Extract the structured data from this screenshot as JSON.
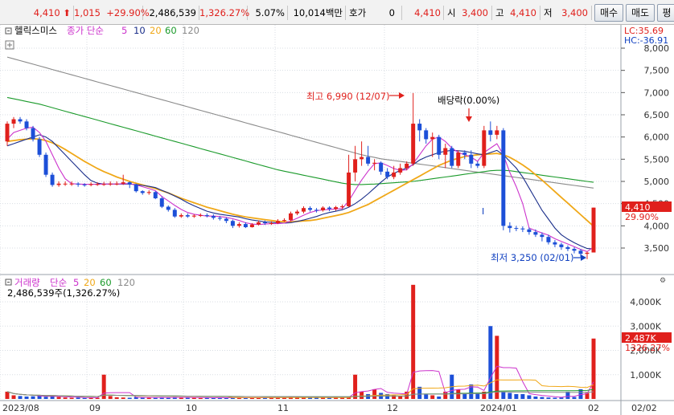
{
  "quote": {
    "price": "4,410",
    "change": "1,015",
    "change_pct": "+29.90%",
    "volume": "2,486,539",
    "volume_pct": "1,326.27%",
    "turnover": "5.07%",
    "amount": "10,014백만",
    "hoga_label": "호가",
    "hoga_value": "0",
    "current": "4,410",
    "open_label": "시",
    "open": "3,400",
    "high_label": "고",
    "high": "4,410",
    "low_label": "저",
    "low": "3,400"
  },
  "buttons": {
    "buy": "매수",
    "sell": "매도",
    "extra": "평"
  },
  "price_legend": {
    "name": "헬릭스미스",
    "type": "종가 단순",
    "ma": [
      "5",
      "10",
      "20",
      "60",
      "120"
    ]
  },
  "volume_legend": {
    "name": "거래량",
    "type": "단순",
    "ma": [
      "5",
      "20",
      "60",
      "120"
    ],
    "current": "2,486,539주(1,326.27%)"
  },
  "y_axis_price": [
    "8,000",
    "7,500",
    "7,000",
    "6,500",
    "6,000",
    "5,500",
    "5,000",
    "4,500",
    "4,000",
    "3,500"
  ],
  "y_axis_volume": [
    "4,000K",
    "3,000K",
    "2,000K",
    "1,000K"
  ],
  "lc_label": "LC:35.69",
  "hc_label": "HC:-36.91",
  "last_price_tag": "4,410",
  "last_change_tag": "29.90%",
  "last_volume_tag": "2,487K",
  "last_volume_pct_tag": "1326.27%",
  "annotations": {
    "high": "최고 6,990 (12/07)",
    "dividend": "배당락(0.00%)",
    "low": "최저 3,250 (02/01)",
    "marker": "I"
  },
  "x_axis": [
    "2023/08",
    "09",
    "10",
    "11",
    "12",
    "2024/01",
    "02",
    "02/02"
  ],
  "colors": {
    "up": "#e0201c",
    "down": "#1c4fd8",
    "ma5": "#cc33cc",
    "ma10": "#1a2e8a",
    "ma20": "#f0a818",
    "ma60": "#1a9a2a",
    "ma120": "#8a8a8a"
  },
  "chart_data": {
    "type": "candlestick",
    "price": {
      "open": [
        5900,
        6300,
        6400,
        6350,
        6200,
        5950,
        5600,
        5150,
        4920,
        4950,
        4950,
        4950,
        4930,
        4920,
        4940,
        4940,
        4940,
        4950,
        4950,
        4980,
        4930,
        4780,
        4740,
        4760,
        4620,
        4430,
        4360,
        4210,
        4240,
        4210,
        4230,
        4240,
        4220,
        4180,
        4160,
        4110,
        4000,
        4040,
        3970,
        4030,
        4080,
        4060,
        4060,
        4110,
        4130,
        4280,
        4320,
        4400,
        4360,
        4350,
        4410,
        4380,
        4420,
        4440,
        5200,
        5500,
        5550,
        5400,
        5420,
        5220,
        5100,
        5200,
        5300,
        5400,
        6300,
        6150,
        5950,
        6000,
        5600,
        5750,
        5350,
        5650,
        5600,
        5400,
        5350,
        6150,
        6050,
        6150,
        4000,
        3950,
        3940,
        3920,
        3860,
        3800,
        3750,
        3630,
        3580,
        3520,
        3480,
        3440,
        3370,
        3400
      ],
      "close": [
        6300,
        6400,
        6350,
        6200,
        5950,
        5600,
        5150,
        4920,
        4950,
        4950,
        4950,
        4930,
        4920,
        4940,
        4940,
        4940,
        4950,
        4950,
        4980,
        4930,
        4780,
        4740,
        4760,
        4620,
        4430,
        4360,
        4210,
        4240,
        4210,
        4230,
        4240,
        4220,
        4180,
        4160,
        4110,
        4000,
        4040,
        3970,
        4030,
        4080,
        4060,
        4060,
        4110,
        4130,
        4280,
        4320,
        4400,
        4360,
        4350,
        4410,
        4380,
        4420,
        4440,
        5200,
        5500,
        5550,
        5400,
        5420,
        5220,
        5100,
        5200,
        5300,
        5400,
        6300,
        6150,
        5950,
        6000,
        5600,
        5750,
        5350,
        5650,
        5600,
        5400,
        5350,
        6150,
        6050,
        6150,
        4000,
        3950,
        3940,
        3920,
        3860,
        3800,
        3750,
        3630,
        3580,
        3520,
        3480,
        3440,
        3370,
        3395,
        4410
      ],
      "high": [
        6350,
        6450,
        6450,
        6400,
        6250,
        6000,
        5650,
        5200,
        5000,
        5000,
        5000,
        4980,
        4960,
        4980,
        4980,
        4990,
        5000,
        5000,
        5150,
        5000,
        4950,
        4800,
        4800,
        4780,
        4660,
        4460,
        4400,
        4280,
        4280,
        4260,
        4280,
        4280,
        4260,
        4220,
        4190,
        4140,
        4080,
        4080,
        4060,
        4120,
        4120,
        4100,
        4150,
        4170,
        4320,
        4360,
        4440,
        4440,
        4400,
        4440,
        4440,
        4450,
        4480,
        5600,
        5800,
        5900,
        5800,
        5500,
        5450,
        5300,
        5350,
        5400,
        5450,
        6990,
        6400,
        6200,
        6100,
        6050,
        5850,
        5800,
        5700,
        5700,
        5700,
        5450,
        6250,
        6350,
        6250,
        6200,
        4080,
        4000,
        3990,
        3960,
        3920,
        3850,
        3800,
        3680,
        3620,
        3560,
        3520,
        3480,
        3420,
        4410
      ],
      "low": [
        5800,
        6200,
        6300,
        6150,
        5900,
        5550,
        5100,
        4880,
        4880,
        4900,
        4900,
        4880,
        4880,
        4890,
        4900,
        4900,
        4900,
        4910,
        4920,
        4850,
        4750,
        4700,
        4700,
        4600,
        4400,
        4320,
        4180,
        4180,
        4180,
        4180,
        4200,
        4190,
        4140,
        4120,
        4060,
        3950,
        3960,
        3950,
        3960,
        4010,
        4020,
        4020,
        4040,
        4090,
        4100,
        4240,
        4280,
        4320,
        4300,
        4320,
        4330,
        4340,
        4380,
        4420,
        5000,
        5350,
        5350,
        5250,
        5150,
        5050,
        5050,
        5150,
        5250,
        5350,
        5900,
        5850,
        5550,
        5500,
        5300,
        5300,
        5300,
        5500,
        5300,
        5300,
        5300,
        5900,
        5950,
        3900,
        3850,
        3880,
        3860,
        3800,
        3750,
        3650,
        3580,
        3520,
        3460,
        3430,
        3380,
        3300,
        3250,
        3400
      ]
    },
    "volume_k": [
      300,
      150,
      120,
      100,
      110,
      130,
      90,
      110,
      80,
      60,
      50,
      60,
      40,
      60,
      50,
      1000,
      120,
      70,
      60,
      50,
      80,
      60,
      60,
      50,
      70,
      60,
      80,
      60,
      50,
      50,
      40,
      60,
      50,
      60,
      40,
      50,
      60,
      40,
      50,
      50,
      60,
      70,
      50,
      60,
      80,
      90,
      60,
      60,
      70,
      50,
      60,
      80,
      60,
      70,
      1000,
      300,
      200,
      400,
      250,
      200,
      150,
      120,
      300,
      4700,
      500,
      200,
      150,
      100,
      300,
      1000,
      400,
      200,
      600,
      250,
      300,
      3000,
      2600,
      300,
      250,
      200,
      200,
      150,
      100,
      80,
      60,
      50,
      60,
      300,
      80,
      400,
      250,
      2487
    ],
    "ma_price": {
      "ma5": [
        5950,
        6100,
        6150,
        6200,
        6220,
        6100,
        5900,
        5600,
        5300,
        5060,
        4950,
        4940,
        4935,
        4935,
        4935,
        4940,
        4940,
        4940,
        4950,
        4950,
        4920,
        4880,
        4840,
        4790,
        4660,
        4560,
        4460,
        4370,
        4300,
        4260,
        4240,
        4220,
        4220,
        4210,
        4190,
        4160,
        4120,
        4070,
        4040,
        4030,
        4040,
        4050,
        4050,
        4060,
        4110,
        4170,
        4240,
        4300,
        4340,
        4360,
        4370,
        4380,
        4390,
        4560,
        4800,
        5030,
        5230,
        5400,
        5420,
        5360,
        5290,
        5250,
        5260,
        5400,
        5600,
        5800,
        5950,
        6000,
        5900,
        5750,
        5650,
        5600,
        5550,
        5450,
        5650,
        5750,
        5850,
        5600,
        5200,
        4880,
        4500,
        3950,
        3890,
        3840,
        3790,
        3710,
        3650,
        3590,
        3530,
        3470,
        3420,
        3520
      ],
      "ma10": [
        5800,
        5850,
        5900,
        5950,
        6000,
        6050,
        6000,
        5900,
        5750,
        5600,
        5450,
        5300,
        5150,
        5020,
        4960,
        4940,
        4940,
        4940,
        4940,
        4940,
        4930,
        4910,
        4890,
        4860,
        4800,
        4740,
        4670,
        4600,
        4520,
        4450,
        4390,
        4330,
        4290,
        4260,
        4240,
        4220,
        4200,
        4160,
        4130,
        4110,
        4090,
        4080,
        4070,
        4060,
        4070,
        4100,
        4130,
        4170,
        4210,
        4260,
        4300,
        4330,
        4360,
        4420,
        4500,
        4600,
        4720,
        4850,
        4980,
        5100,
        5180,
        5250,
        5300,
        5380,
        5480,
        5550,
        5600,
        5650,
        5680,
        5700,
        5690,
        5680,
        5650,
        5620,
        5600,
        5650,
        5700,
        5600,
        5450,
        5300,
        5100,
        4850,
        4600,
        4350,
        4150,
        3950,
        3800,
        3700,
        3620,
        3550,
        3490,
        3480
      ],
      "ma20": [
        5900,
        5920,
        5940,
        5950,
        5960,
        5950,
        5920,
        5870,
        5800,
        5720,
        5630,
        5540,
        5450,
        5370,
        5290,
        5220,
        5160,
        5100,
        5050,
        5000,
        4960,
        4920,
        4880,
        4840,
        4790,
        4740,
        4680,
        4620,
        4570,
        4520,
        4470,
        4420,
        4380,
        4340,
        4300,
        4260,
        4230,
        4200,
        4180,
        4160,
        4140,
        4120,
        4100,
        4090,
        4090,
        4100,
        4110,
        4120,
        4140,
        4170,
        4200,
        4230,
        4260,
        4300,
        4360,
        4420,
        4480,
        4560,
        4640,
        4720,
        4800,
        4880,
        4960,
        5040,
        5120,
        5200,
        5280,
        5360,
        5420,
        5480,
        5520,
        5560,
        5580,
        5600,
        5610,
        5620,
        5630,
        5600,
        5540,
        5460,
        5370,
        5270,
        5150,
        5030,
        4900,
        4770,
        4640,
        4510,
        4380,
        4250,
        4120,
        3990
      ],
      "ma60": [
        6890,
        6860,
        6830,
        6800,
        6770,
        6740,
        6700,
        6660,
        6620,
        6580,
        6540,
        6500,
        6460,
        6420,
        6380,
        6340,
        6300,
        6260,
        6220,
        6180,
        6140,
        6100,
        6060,
        6020,
        5980,
        5940,
        5900,
        5860,
        5820,
        5780,
        5740,
        5700,
        5660,
        5620,
        5580,
        5540,
        5500,
        5460,
        5420,
        5380,
        5340,
        5300,
        5260,
        5230,
        5200,
        5170,
        5140,
        5110,
        5080,
        5050,
        5020,
        4990,
        4960,
        4940,
        4930,
        4930,
        4935,
        4940,
        4950,
        4960,
        4970,
        4980,
        4990,
        5000,
        5020,
        5040,
        5060,
        5080,
        5100,
        5120,
        5140,
        5160,
        5180,
        5200,
        5220,
        5240,
        5250,
        5250,
        5240,
        5220,
        5200,
        5180,
        5160,
        5140,
        5120,
        5100,
        5080,
        5060,
        5040,
        5020,
        5000,
        4980
      ],
      "ma120": [
        7800,
        7760,
        7720,
        7680,
        7640,
        7600,
        7560,
        7520,
        7480,
        7440,
        7400,
        7360,
        7320,
        7280,
        7240,
        7200,
        7160,
        7120,
        7080,
        7040,
        7000,
        6960,
        6920,
        6880,
        6840,
        6800,
        6760,
        6720,
        6680,
        6640,
        6600,
        6560,
        6520,
        6480,
        6440,
        6400,
        6360,
        6320,
        6280,
        6240,
        6200,
        6160,
        6120,
        6080,
        6040,
        6000,
        5960,
        5920,
        5880,
        5840,
        5800,
        5760,
        5720,
        5680,
        5640,
        5600,
        5570,
        5540,
        5510,
        5490,
        5470,
        5450,
        5430,
        5410,
        5390,
        5370,
        5350,
        5330,
        5310,
        5290,
        5270,
        5250,
        5230,
        5210,
        5190,
        5170,
        5150,
        5130,
        5110,
        5090,
        5070,
        5050,
        5030,
        5010,
        4990,
        4970,
        4950,
        4930,
        4910,
        4890,
        4870,
        4850
      ]
    },
    "price_range": [
      3250,
      8000
    ],
    "volume_range_k": [
      0,
      4700
    ]
  }
}
